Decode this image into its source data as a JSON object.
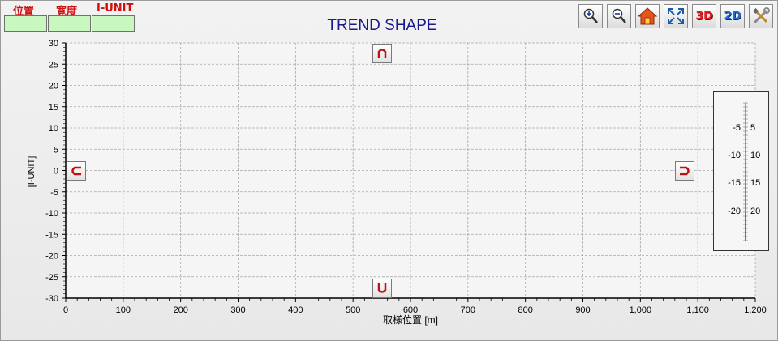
{
  "header": {
    "position_label": "位置",
    "width_label": "寛度",
    "unit_label": "I-UNIT"
  },
  "toolbar": {
    "zoom_in": "zoom-in-icon",
    "zoom_out": "zoom-out-icon",
    "home": "home-icon",
    "fit": "fit-to-window-icon",
    "view3d_label": "3D",
    "view2d_label": "2D",
    "settings": "settings-tools-icon"
  },
  "pan_buttons": {
    "up": "up-arrow-icon",
    "down": "down-arrow-icon",
    "left": "left-arrow-icon",
    "right": "right-arrow-icon"
  },
  "chart_data": {
    "type": "line",
    "title": "TREND SHAPE",
    "xlabel": "取様位置 [m]",
    "ylabel": "[I-UNIT]",
    "xlim": [
      0,
      1200
    ],
    "ylim": [
      -30,
      30
    ],
    "xticks": [
      0,
      100,
      200,
      300,
      400,
      500,
      600,
      700,
      800,
      900,
      1000,
      1100,
      1200
    ],
    "xtick_labels": [
      "0",
      "100",
      "200",
      "300",
      "400",
      "500",
      "600",
      "700",
      "800",
      "900",
      "1,000",
      "1,100",
      "1,200"
    ],
    "yticks": [
      30,
      25,
      20,
      15,
      10,
      5,
      0,
      -5,
      -10,
      -15,
      -20,
      -25,
      -30
    ],
    "grid": true,
    "series": []
  },
  "color_scale": {
    "labels_left": [
      "-5",
      "-10",
      "-15",
      "-20"
    ],
    "labels_right": [
      "5",
      "10",
      "15",
      "20"
    ]
  },
  "colors": {
    "title": "#1a1a8c",
    "header": "#d01010",
    "value_box": "#c8f8c0"
  }
}
